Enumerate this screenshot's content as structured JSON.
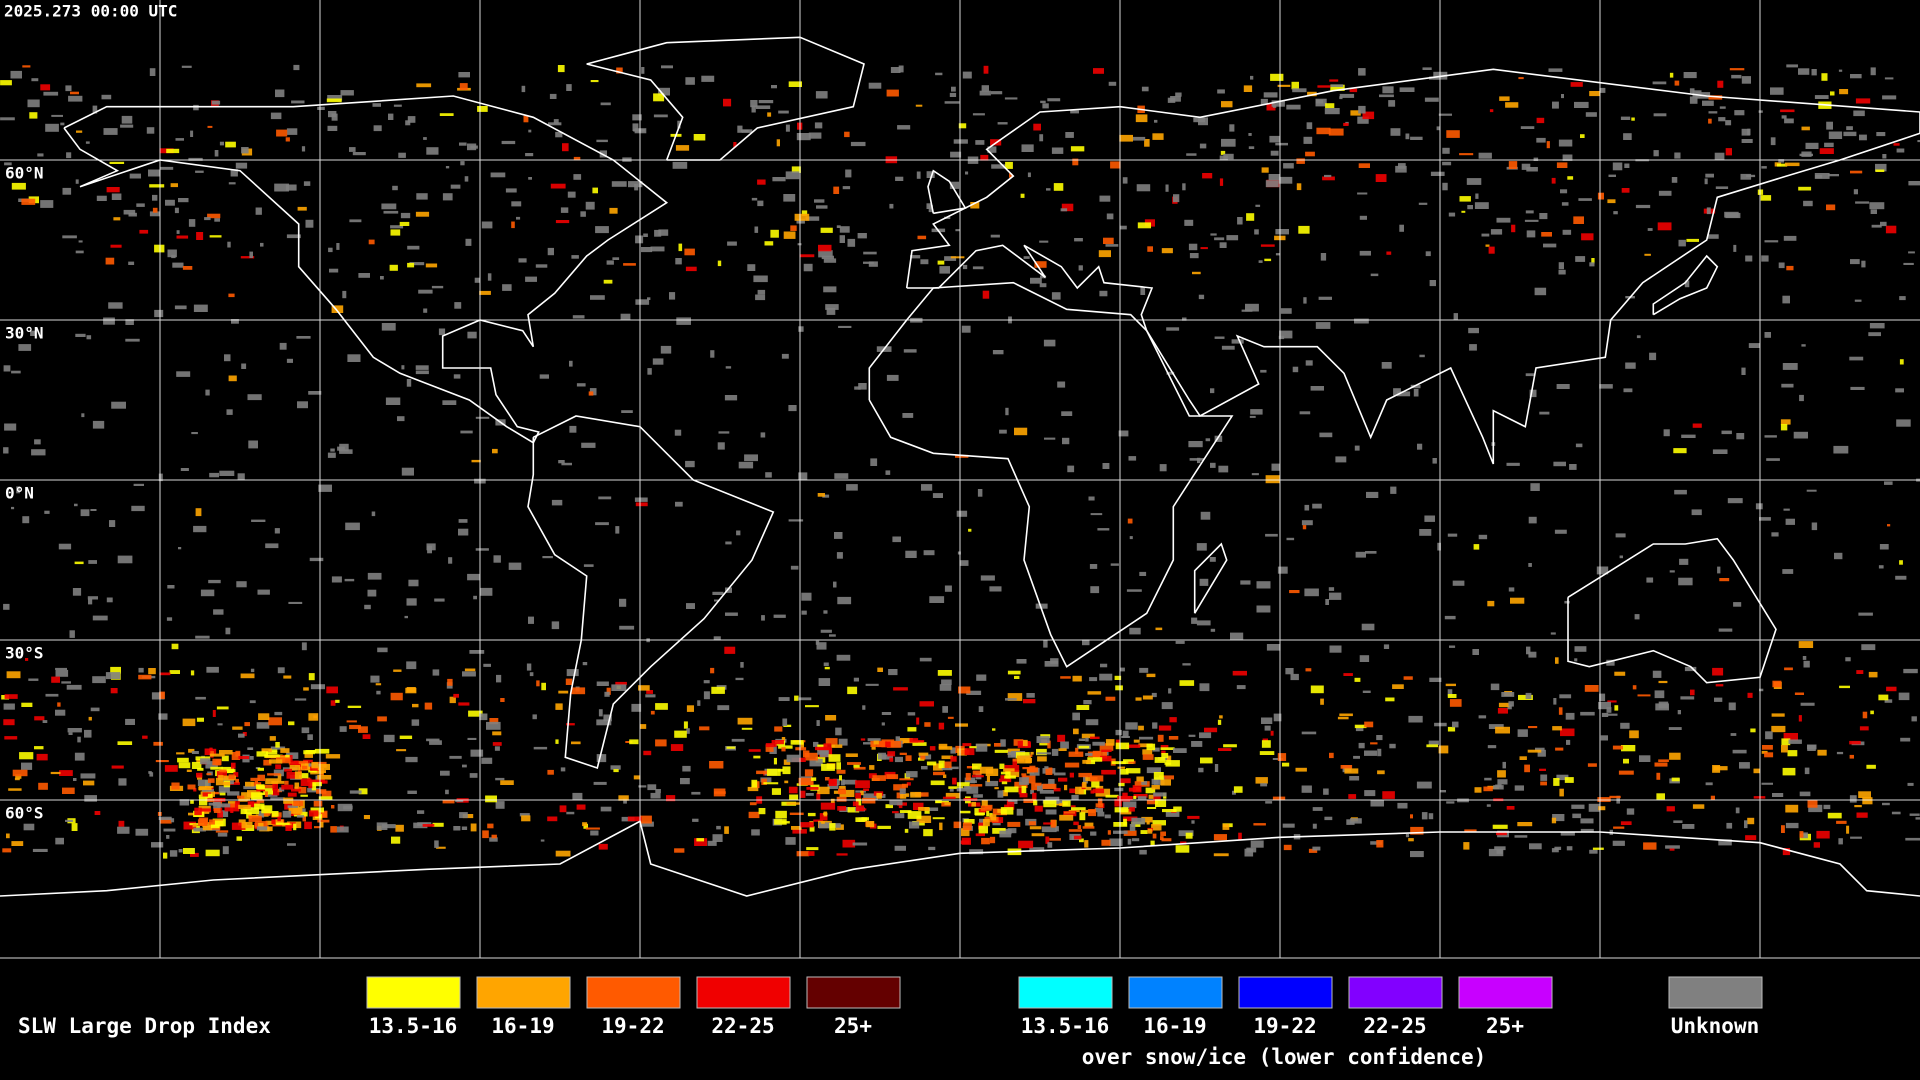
{
  "header": {
    "timestamp": "2025.273 00:00 UTC"
  },
  "grid": {
    "latitude_labels": [
      "60°N",
      "30°N",
      "0°N",
      "30°S",
      "60°S"
    ]
  },
  "legend": {
    "title": "SLW Large Drop Index",
    "liquid": [
      {
        "label": "13.5-16",
        "color": "#ffff00"
      },
      {
        "label": "16-19",
        "color": "#ffa500"
      },
      {
        "label": "19-22",
        "color": "#ff5a00"
      },
      {
        "label": "22-25",
        "color": "#f00000"
      },
      {
        "label": "25+",
        "color": "#640000"
      }
    ],
    "snow": [
      {
        "label": "13.5-16",
        "color": "#00ffff"
      },
      {
        "label": "16-19",
        "color": "#0082ff"
      },
      {
        "label": "19-22",
        "color": "#0000ff"
      },
      {
        "label": "22-25",
        "color": "#8200ff"
      },
      {
        "label": "25+",
        "color": "#c800ff"
      }
    ],
    "snow_caption": "over snow/ice (lower confidence)",
    "unknown": {
      "label": "Unknown",
      "color": "#808080"
    }
  }
}
